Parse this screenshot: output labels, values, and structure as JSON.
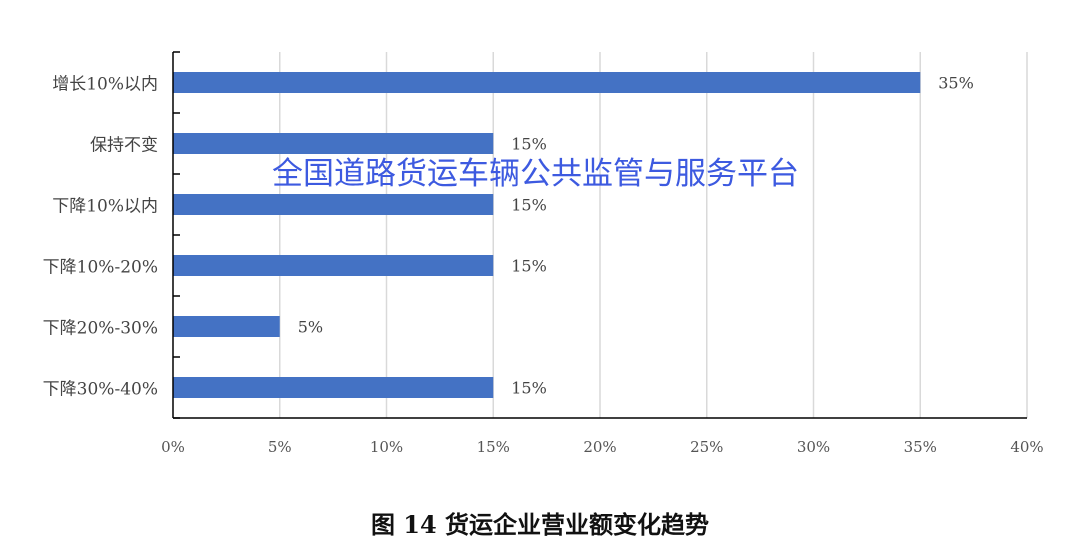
{
  "chart_data": {
    "type": "bar",
    "orientation": "horizontal",
    "title": "",
    "categories": [
      "增长10%以内",
      "保持不变",
      "下降10%以内",
      "下降10%-20%",
      "下降20%-30%",
      "下降30%-40%"
    ],
    "values": [
      35,
      15,
      15,
      15,
      5,
      15
    ],
    "data_labels": [
      "35%",
      "15%",
      "15%",
      "15%",
      "5%",
      "15%"
    ],
    "xlim": [
      0,
      40
    ],
    "xticks": [
      "0%",
      "5%",
      "10%",
      "15%",
      "20%",
      "25%",
      "30%",
      "35%",
      "40%"
    ],
    "grid": "vertical",
    "bar_color": "#4472C4"
  },
  "watermark": "全国道路货运车辆公共监管与服务平台",
  "caption": "图 14 货运企业营业额变化趋势"
}
